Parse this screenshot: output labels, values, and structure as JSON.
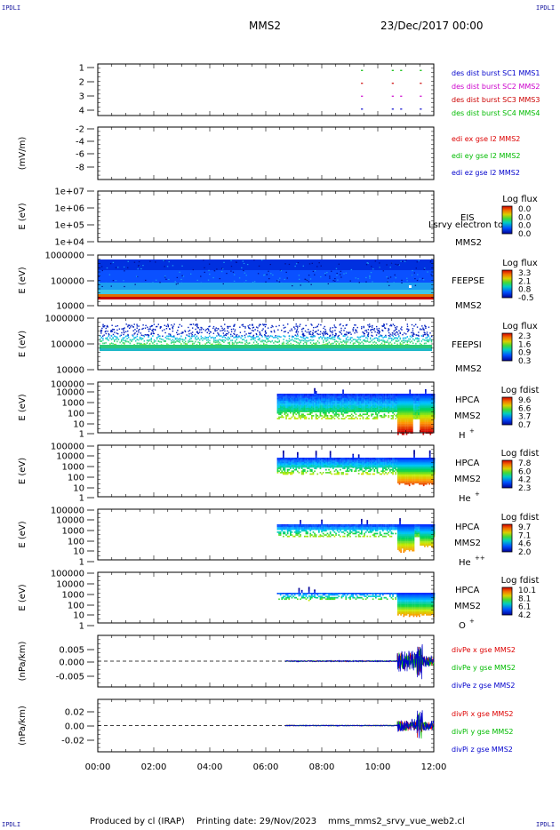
{
  "header": {
    "corner_label": "IPDLI",
    "spacecraft": "MMS2",
    "date_time": "23/Dec/2017 00:00"
  },
  "footer": {
    "produced_by": "Produced by cl (IRAP)",
    "printing_date": "Printing date: 29/Nov/2023",
    "script_name": "mms_mms2_srvy_vue_web2.cl"
  },
  "x_axis": {
    "ticks": [
      "00:00",
      "02:00",
      "04:00",
      "06:00",
      "08:00",
      "10:00",
      "12:00"
    ],
    "range_hours": [
      0,
      12
    ]
  },
  "colors": {
    "mms1": "#0000cc",
    "mms2": "#cc00cc",
    "mms3": "#cc0000",
    "mms4": "#00bb00",
    "x_comp": "#dd0000",
    "y_comp": "#00bb00",
    "z_comp": "#0000cc"
  },
  "chart_data": [
    {
      "type": "scatter",
      "panel": "burst",
      "yticks": [
        "1",
        "2",
        "3",
        "4"
      ],
      "ylim": [
        0.5,
        4.5
      ],
      "legend": [
        {
          "text": "des dist burst SC1 MMS1",
          "color": "#0000cc"
        },
        {
          "text": "des dist burst SC2 MMS2",
          "color": "#cc00cc"
        },
        {
          "text": "des dist burst SC3 MMS3",
          "color": "#cc0000"
        },
        {
          "text": "des dist burst SC4 MMS4",
          "color": "#00bb00"
        }
      ],
      "series": [
        {
          "name": "des dist burst SC1 MMS1",
          "y": 1,
          "x": [
            9.4,
            10.5,
            10.8,
            11.5
          ]
        },
        {
          "name": "des dist burst SC2 MMS2",
          "y": 2,
          "x": [
            9.4,
            10.5,
            10.8,
            11.5
          ]
        },
        {
          "name": "des dist burst SC3 MMS3",
          "y": 3,
          "x": [
            9.4,
            10.5,
            11.5
          ]
        },
        {
          "name": "des dist burst SC4 MMS4",
          "y": 4,
          "x": [
            9.4,
            10.5,
            10.8,
            11.5
          ]
        }
      ]
    },
    {
      "type": "line",
      "panel": "edi",
      "ylabel": "(mV/m)",
      "yticks": [
        "-2",
        "-4",
        "-6",
        "-8"
      ],
      "ylim": [
        -9.5,
        -1.5
      ],
      "legend": [
        {
          "text": "edi ex gse l2 MMS2",
          "color": "#dd0000"
        },
        {
          "text": "edi ey gse l2 MMS2",
          "color": "#00bb00"
        },
        {
          "text": "edi ez gse l2 MMS2",
          "color": "#0000cc"
        }
      ]
    },
    {
      "type": "heatmap",
      "panel": "eis",
      "ylabel": "E (eV)",
      "yticks": [
        "1e+07",
        "1e+06",
        "1e+05",
        "1e+04"
      ],
      "label1": "EIS",
      "label2": "MMS2",
      "overlay": "Lsrvy electron to",
      "cbar_title": "Log flux",
      "cbar_ticks": [
        "0.0",
        "0.0",
        "0.0",
        "0.0"
      ]
    },
    {
      "type": "heatmap",
      "panel": "feepse",
      "ylabel": "E (eV)",
      "yticks": [
        "1000000",
        "100000",
        "10000"
      ],
      "label1": "FEEPSE",
      "label2": "MMS2",
      "cbar_title": "Log flux",
      "cbar_ticks": [
        "3.3",
        "2.1",
        "0.8",
        "-0.5"
      ]
    },
    {
      "type": "heatmap",
      "panel": "feepsi",
      "ylabel": "E (eV)",
      "yticks": [
        "1000000",
        "100000",
        "10000"
      ],
      "label1": "FEEPSI",
      "label2": "MMS2",
      "cbar_title": "Log flux",
      "cbar_ticks": [
        "2.3",
        "1.6",
        "0.9",
        "0.3"
      ]
    },
    {
      "type": "heatmap",
      "panel": "hpca_h",
      "ylabel": "E (eV)",
      "yticks": [
        "100000",
        "10000",
        "1000",
        "100",
        "10",
        "1"
      ],
      "label1": "HPCA",
      "label2": "MMS2",
      "species": "H",
      "species_sup": "+",
      "cbar_title": "Log fdist",
      "cbar_ticks": [
        "9.6",
        "6.6",
        "3.7",
        "0.7"
      ]
    },
    {
      "type": "heatmap",
      "panel": "hpca_he",
      "ylabel": "E (eV)",
      "yticks": [
        "100000",
        "10000",
        "1000",
        "100",
        "10",
        "1"
      ],
      "label1": "HPCA",
      "label2": "MMS2",
      "species": "He",
      "species_sup": "+",
      "cbar_title": "Log fdist",
      "cbar_ticks": [
        "7.8",
        "6.0",
        "4.2",
        "2.3"
      ]
    },
    {
      "type": "heatmap",
      "panel": "hpca_he2",
      "ylabel": "E (eV)",
      "yticks": [
        "100000",
        "10000",
        "1000",
        "100",
        "10",
        "1"
      ],
      "label1": "HPCA",
      "label2": "MMS2",
      "species": "He",
      "species_sup": "++",
      "cbar_title": "Log fdist",
      "cbar_ticks": [
        "9.7",
        "7.1",
        "4.6",
        "2.0"
      ]
    },
    {
      "type": "heatmap",
      "panel": "hpca_o",
      "ylabel": "E (eV)",
      "yticks": [
        "100000",
        "10000",
        "1000",
        "100",
        "10",
        "1"
      ],
      "label1": "HPCA",
      "label2": "MMS2",
      "species": "O",
      "species_sup": "+",
      "cbar_title": "Log fdist",
      "cbar_ticks": [
        "10.1",
        "8.1",
        "6.1",
        "4.2"
      ]
    },
    {
      "type": "line",
      "panel": "divpe",
      "ylabel": "(nPa/km)",
      "yticks": [
        "0.005",
        "0.000",
        "-0.005"
      ],
      "ylim": [
        -0.0085,
        0.0085
      ],
      "legend": [
        {
          "text": "divPe x gse MMS2",
          "color": "#dd0000"
        },
        {
          "text": "divPe y gse MMS2",
          "color": "#00bb00"
        },
        {
          "text": "divPe z gse MMS2",
          "color": "#0000cc"
        }
      ],
      "activity": [
        {
          "x_start": 6.7,
          "x_end": 10.7,
          "amplitude": 0.0002
        },
        {
          "x_start": 10.7,
          "x_end": 11.4,
          "amplitude": 0.0035
        },
        {
          "x_start": 11.4,
          "x_end": 11.6,
          "amplitude": 0.006
        },
        {
          "x_start": 11.6,
          "x_end": 12.0,
          "amplitude": 0.002
        }
      ]
    },
    {
      "type": "line",
      "panel": "divpi",
      "ylabel": "(nPa/km)",
      "yticks": [
        "0.02",
        "0.00",
        "-0.02"
      ],
      "ylim": [
        -0.032,
        0.032
      ],
      "legend": [
        {
          "text": "divPi x gse MMS2",
          "color": "#dd0000"
        },
        {
          "text": "divPi y gse MMS2",
          "color": "#00bb00"
        },
        {
          "text": "divPi z gse MMS2",
          "color": "#0000cc"
        }
      ],
      "activity": [
        {
          "x_start": 6.7,
          "x_end": 10.7,
          "amplitude": 0.0006
        },
        {
          "x_start": 10.7,
          "x_end": 11.4,
          "amplitude": 0.008
        },
        {
          "x_start": 11.4,
          "x_end": 11.6,
          "amplitude": 0.02
        },
        {
          "x_start": 11.6,
          "x_end": 12.0,
          "amplitude": 0.006
        }
      ]
    }
  ]
}
